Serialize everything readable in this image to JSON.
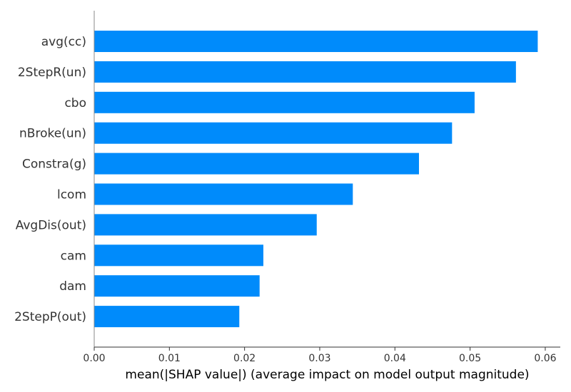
{
  "chart_data": {
    "type": "bar",
    "orientation": "horizontal",
    "categories": [
      "avg(cc)",
      "2StepR(un)",
      "cbo",
      "nBroke(un)",
      "Constra(g)",
      "lcom",
      "AvgDis(out)",
      "cam",
      "dam",
      "2StepP(out)"
    ],
    "values": [
      0.059,
      0.0561,
      0.0506,
      0.0476,
      0.0432,
      0.0344,
      0.0296,
      0.0225,
      0.022,
      0.0193
    ],
    "xlabel": "mean(|SHAP value|) (average impact on model output magnitude)",
    "ylabel": "",
    "xlim": [
      0,
      0.062
    ],
    "xticks": [
      0.0,
      0.01,
      0.02,
      0.03,
      0.04,
      0.05,
      0.06
    ],
    "xtick_labels": [
      "0.00",
      "0.01",
      "0.02",
      "0.03",
      "0.04",
      "0.05",
      "0.06"
    ],
    "grid": false,
    "bar_color": "#008bfb"
  }
}
